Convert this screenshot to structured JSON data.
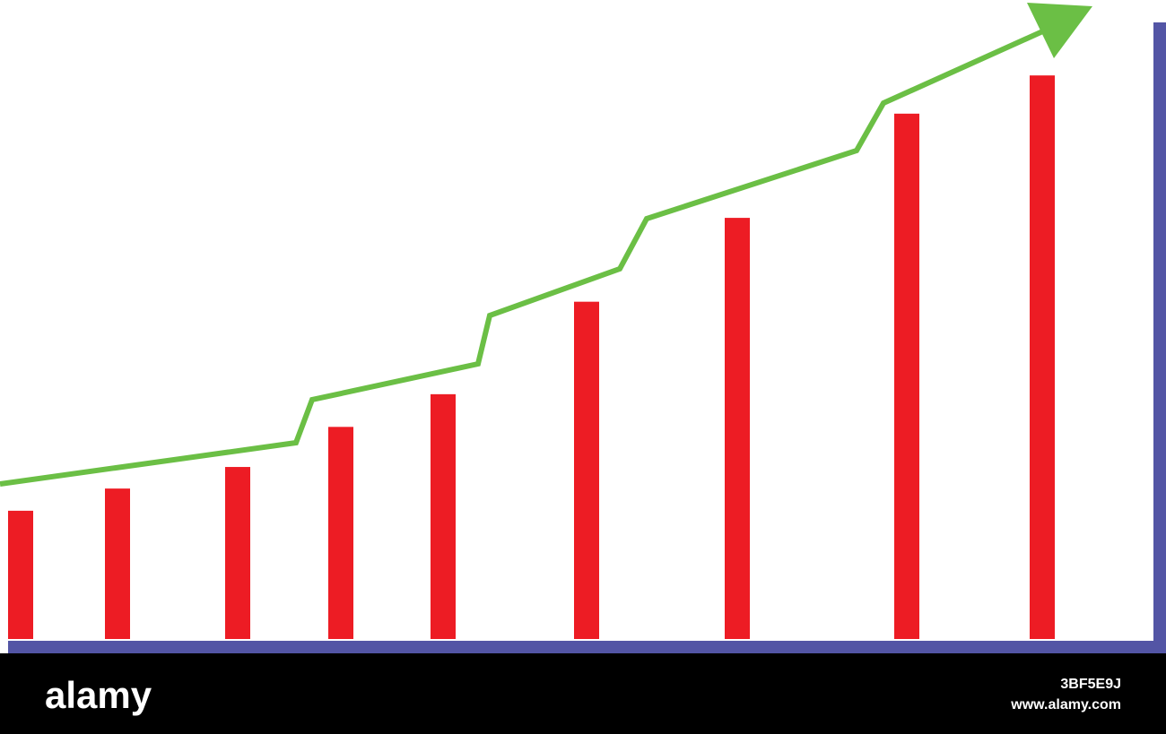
{
  "chart_data": {
    "type": "bar",
    "categories": [
      null,
      null,
      null,
      null,
      null,
      null,
      null,
      null,
      null
    ],
    "values": [
      20.8,
      24.4,
      27.9,
      34.4,
      39.7,
      54.7,
      68.3,
      85.2,
      91.4
    ],
    "color": "#ed1c24",
    "ylim": [
      0,
      100
    ]
  },
  "watermark": {
    "brand": "alamy",
    "url": "www.alamy.com",
    "id": "3BF5E9J"
  }
}
